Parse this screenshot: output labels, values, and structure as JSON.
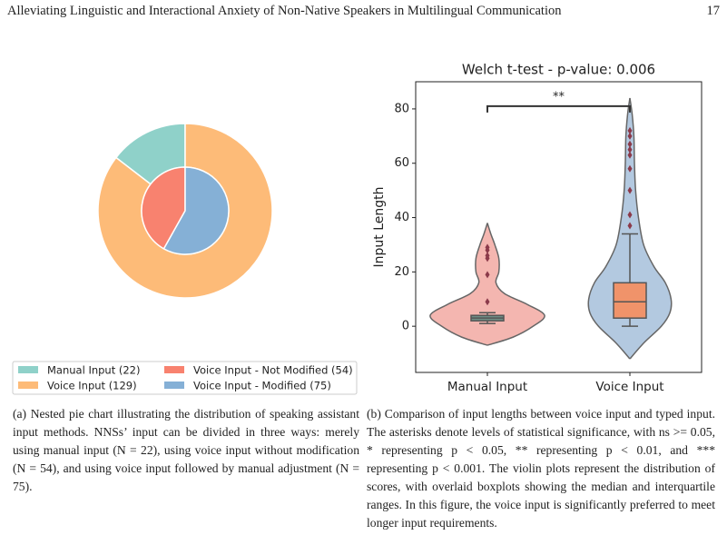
{
  "header": {
    "title": "Alleviating Linguistic and Interactional Anxiety of Non-Native Speakers in Multilingual Communication",
    "page": "17"
  },
  "chart_data": [
    {
      "type": "pie",
      "rings": [
        {
          "categories": [
            "Manual Input (22)",
            "Voice Input (129)"
          ],
          "values": [
            22,
            129
          ],
          "colors": [
            "#8fd1c9",
            "#fdbb78"
          ]
        },
        {
          "categories": [
            "Voice Input - Not Modified (54)",
            "Voice Input - Modified (75)"
          ],
          "values": [
            54,
            75
          ],
          "colors": [
            "#f8826f",
            "#85b0d6"
          ]
        }
      ]
    },
    {
      "type": "violin",
      "title": "Welch t-test - p-value: 0.006",
      "ylabel": "Input Length",
      "categories": [
        "Manual Input",
        "Voice Input"
      ],
      "ylim": [
        -17,
        90
      ],
      "yticks": [
        0,
        20,
        40,
        60,
        80
      ],
      "annotation": {
        "text": "**",
        "y": 81
      },
      "series": [
        {
          "color": "#f4b6b0",
          "box_color": "#6f8f86",
          "box": {
            "whisker_low": 1,
            "q1": 2,
            "median": 3,
            "q3": 4,
            "whisker_high": 5
          },
          "outliers": [
            9,
            19,
            25,
            26,
            28,
            29
          ],
          "violin": {
            "y": [
              -7,
              -4,
              0,
              4,
              8,
              12,
              16,
              20,
              25,
              30,
              34,
              38
            ],
            "density": [
              0,
              0.45,
              0.8,
              1,
              0.7,
              0.3,
              0.15,
              0.2,
              0.2,
              0.13,
              0.06,
              0
            ]
          }
        },
        {
          "color": "#b3c9e0",
          "box_color": "#f0936a",
          "box": {
            "whisker_low": 0,
            "q1": 3,
            "median": 9,
            "q3": 16,
            "whisker_high": 34
          },
          "outliers": [
            37,
            41,
            50,
            58,
            63,
            65,
            67,
            70,
            72
          ],
          "violin": {
            "y": [
              -12,
              -6,
              0,
              5,
              10,
              16,
              22,
              30,
              40,
              50,
              60,
              70,
              78,
              84
            ],
            "density": [
              0,
              0.25,
              0.55,
              0.7,
              0.72,
              0.62,
              0.42,
              0.24,
              0.15,
              0.1,
              0.08,
              0.07,
              0.04,
              0
            ]
          }
        }
      ]
    }
  ],
  "captions": [
    "(a) Nested pie chart illustrating the distribution of speaking assistant input methods. NNSs’ input can be divided in three ways: merely using manual input (N = 22), using voice input without modification (N = 54), and using voice input followed by manual adjustment (N = 75).",
    "(b) Comparison of input lengths between voice input and typed input. The asterisks denote levels of statistical significance, with ns >= 0.05, * representing p < 0.05, ** representing p < 0.01, and *** representing p < 0.001. The violin plots represent the distribution of scores, with overlaid boxplots showing the median and interquartile ranges. In this figure, the voice input is significantly preferred to meet longer input requirements."
  ]
}
